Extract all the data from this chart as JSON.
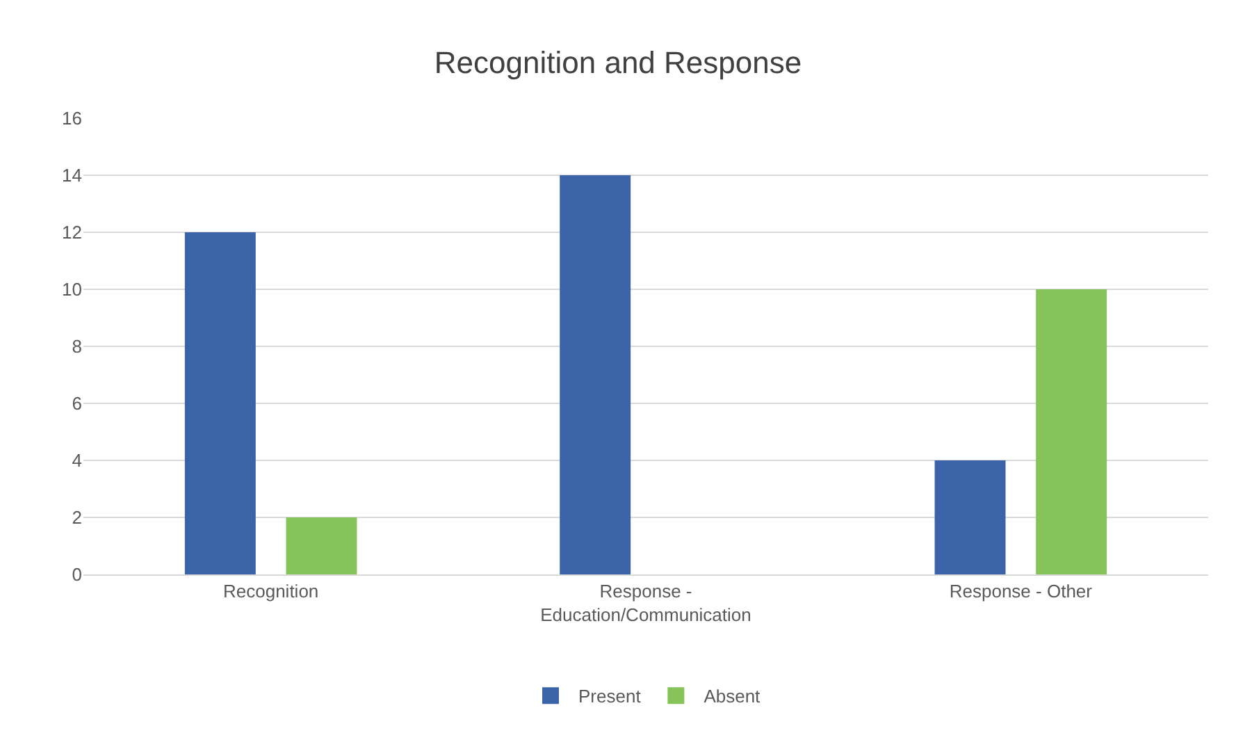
{
  "chart_data": {
    "type": "bar",
    "title": "Recognition and Response",
    "categories": [
      "Recognition",
      "Response - Education/Communication",
      "Response - Other"
    ],
    "series": [
      {
        "name": "Present",
        "color": "#3b64a8",
        "values": [
          12,
          14,
          4
        ]
      },
      {
        "name": "Absent",
        "color": "#86c35a",
        "values": [
          2,
          0,
          10
        ]
      }
    ],
    "ylim": [
      0,
      16
    ],
    "yticks": [
      0,
      2,
      4,
      6,
      8,
      10,
      12,
      14,
      16
    ],
    "grid": "y",
    "legend": "bottom"
  }
}
